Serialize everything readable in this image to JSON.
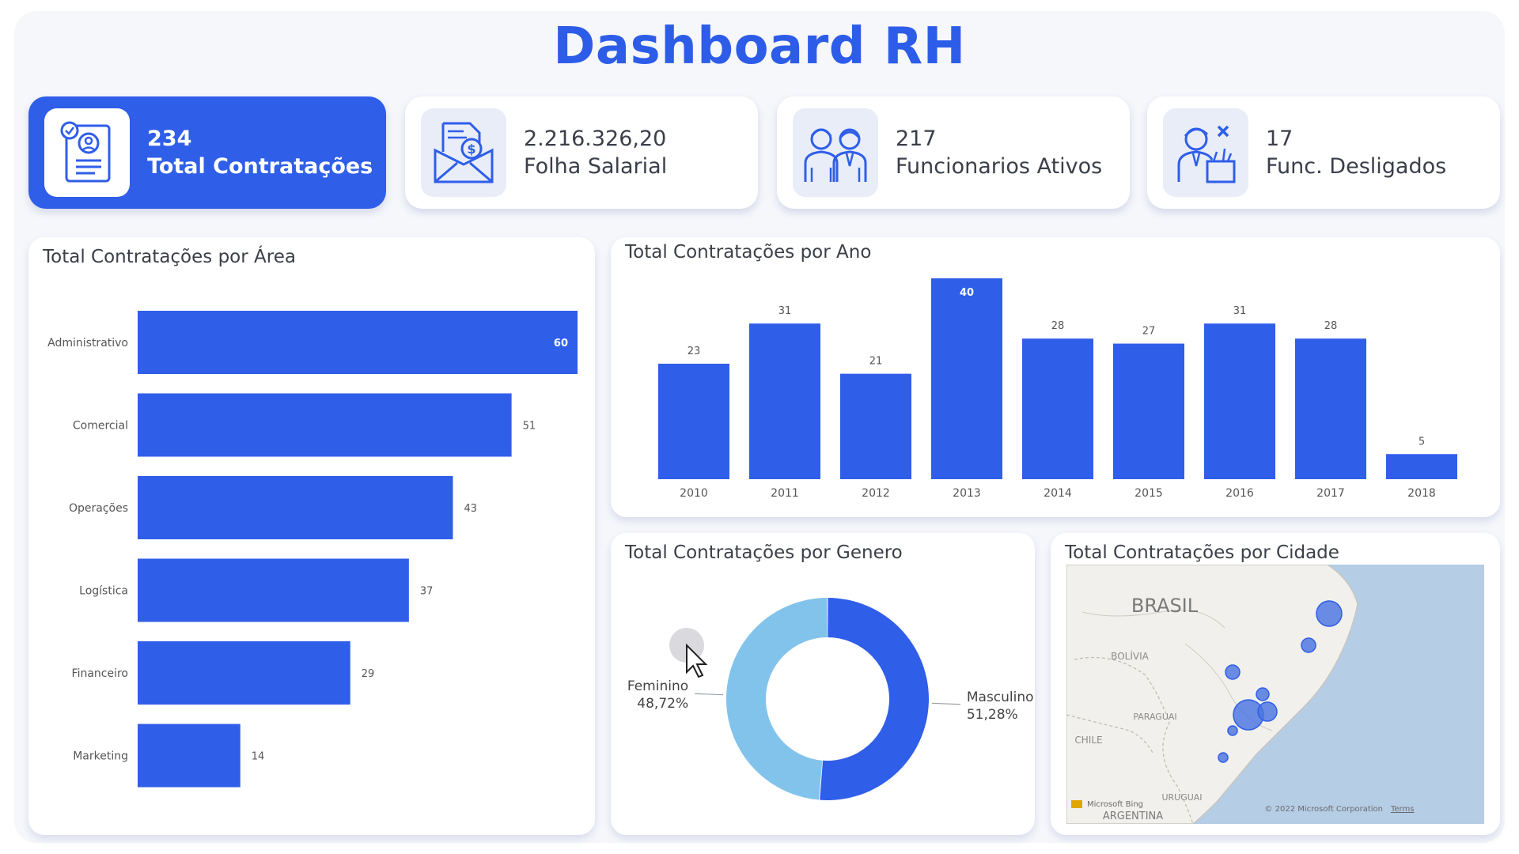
{
  "title": "Dashboard RH",
  "colors": {
    "accent": "#2f5ee9",
    "accent_light": "#82c3ec",
    "frame": "#f6f7fb"
  },
  "kpis": [
    {
      "value": "234",
      "label": "Total Contratações",
      "icon": "id-card-icon",
      "active": true
    },
    {
      "value": "2.216.326,20",
      "label": "Folha Salarial",
      "icon": "payroll-icon",
      "active": false
    },
    {
      "value": "217",
      "label": "Funcionarios Ativos",
      "icon": "employees-icon",
      "active": false
    },
    {
      "value": "17",
      "label": "Func. Desligados",
      "icon": "dismissed-employee-icon",
      "active": false
    }
  ],
  "panels": {
    "area_title": "Total Contratações por Área",
    "year_title": "Total Contratações por Ano",
    "gender_title": "Total Contratações por Genero",
    "city_title": "Total Contratações por Cidade"
  },
  "map": {
    "labels": [
      "BRASIL",
      "BOLÍVIA",
      "PARAGUAI",
      "CHILE",
      "URUGUAI",
      "ARGENTINA"
    ],
    "attribution_left": "Microsoft Bing",
    "attribution_right": "© 2022 Microsoft Corporation",
    "terms": "Terms"
  },
  "chart_data": [
    {
      "type": "bar",
      "orientation": "horizontal",
      "title": "Total Contratações por Área",
      "categories": [
        "Administrativo",
        "Comercial",
        "Operações",
        "Logística",
        "Financeiro",
        "Marketing"
      ],
      "values": [
        60,
        51,
        43,
        37,
        29,
        14
      ],
      "color": "#2f5ee9"
    },
    {
      "type": "bar",
      "title": "Total Contratações por Ano",
      "categories": [
        "2010",
        "2011",
        "2012",
        "2013",
        "2014",
        "2015",
        "2016",
        "2017",
        "2018"
      ],
      "values": [
        23,
        31,
        21,
        40,
        28,
        27,
        31,
        28,
        5
      ],
      "color": "#2f5ee9"
    },
    {
      "type": "pie",
      "style": "donut",
      "title": "Total Contratações por Genero",
      "categories": [
        "Masculino",
        "Feminino"
      ],
      "values": [
        51.28,
        48.72
      ],
      "value_labels": [
        "51,28%",
        "48,72%"
      ],
      "colors": [
        "#2f5ee9",
        "#82c3ec"
      ]
    }
  ]
}
